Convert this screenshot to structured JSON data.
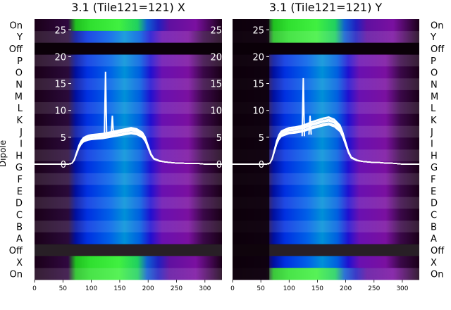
{
  "chart_data": {
    "type": "heatmap",
    "ylabel": "Dipole",
    "dipole_labels_right": [
      "On",
      "Y",
      "Off",
      "P",
      "O",
      "N",
      "M",
      "L",
      "K",
      "J",
      "I",
      "H",
      "G",
      "F",
      "E",
      "D",
      "C",
      "B",
      "A",
      "Off",
      "X",
      "On"
    ],
    "dipole_labels_left": [
      "On",
      "Y",
      "Off",
      "P",
      "O",
      "N",
      "M",
      "L",
      "K",
      "J",
      "I",
      "H",
      "G",
      "F",
      "E",
      "D",
      "C",
      "B",
      "A",
      "Off",
      "X",
      "On"
    ],
    "xlim": [
      0,
      330
    ],
    "xticks": [
      0,
      50,
      100,
      150,
      200,
      250,
      300
    ],
    "ylim": [
      -21.5,
      27
    ],
    "yticks": [
      0,
      5,
      10,
      15,
      20,
      25
    ],
    "colors": {
      "line": "#ffffff",
      "background": "#0a0008"
    },
    "panels": [
      {
        "title": "3.1 (Tile121=121) X",
        "spike_x": [
          125,
          137
        ],
        "spike_y": [
          17.2,
          9.0
        ],
        "profile": {
          "x": [
            0,
            60,
            66,
            70,
            74,
            78,
            82,
            86,
            90,
            95,
            100,
            110,
            120,
            130,
            140,
            150,
            160,
            170,
            180,
            190,
            195,
            200,
            205,
            210,
            220,
            230,
            240,
            250,
            260,
            270,
            280,
            290,
            300,
            310,
            320,
            330
          ],
          "y": [
            0,
            0,
            0.2,
            0.8,
            2.0,
            3.2,
            4.0,
            4.5,
            4.7,
            4.9,
            5.0,
            5.1,
            5.2,
            5.4,
            5.6,
            5.8,
            6.0,
            6.2,
            6.0,
            5.4,
            4.6,
            3.2,
            1.8,
            1.0,
            0.6,
            0.4,
            0.3,
            0.2,
            0.2,
            0.1,
            0.1,
            0.1,
            0.0,
            0.0,
            0.0,
            0.0
          ]
        },
        "bands": [
          {
            "row": "On",
            "green_from": 75,
            "green_to": 190
          },
          {
            "row": "X",
            "green_from": 70,
            "green_to": 195
          }
        ]
      },
      {
        "title": "3.1 (Tile121=121) Y",
        "spike_x": [
          125,
          137
        ],
        "spike_y": [
          16.0,
          9.0
        ],
        "profile": {
          "x": [
            0,
            60,
            66,
            70,
            74,
            78,
            82,
            86,
            90,
            95,
            100,
            110,
            120,
            130,
            140,
            150,
            160,
            170,
            180,
            190,
            195,
            200,
            205,
            210,
            220,
            230,
            240,
            250,
            260,
            270,
            280,
            290,
            300,
            310,
            320,
            330
          ],
          "y": [
            0,
            0,
            0.2,
            1.0,
            2.5,
            4.0,
            5.0,
            5.6,
            5.8,
            6.0,
            6.2,
            6.3,
            6.5,
            6.8,
            7.2,
            7.5,
            7.8,
            8.0,
            7.6,
            6.6,
            5.4,
            3.8,
            2.2,
            1.2,
            0.7,
            0.5,
            0.4,
            0.3,
            0.3,
            0.2,
            0.2,
            0.1,
            0.0,
            0.0,
            0.0,
            0.0
          ]
        },
        "bands": [
          {
            "row": "Y",
            "green_from": 75,
            "green_to": 190
          },
          {
            "row": "On",
            "green_from": 75,
            "green_to": 195
          }
        ]
      }
    ]
  }
}
